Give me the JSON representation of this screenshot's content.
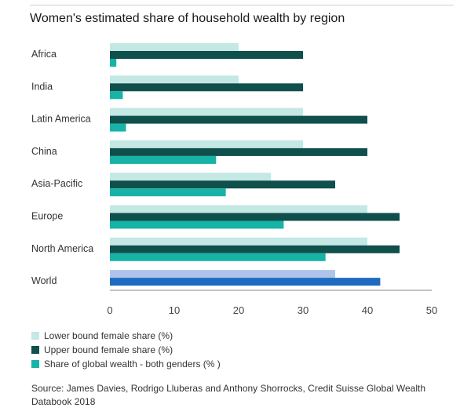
{
  "title": "Women's estimated share of household wealth by region",
  "colors": {
    "lower": "#c4e8e4",
    "upper": "#0f4f4c",
    "global": "#17b3a6",
    "world_lower": "#aec4ea",
    "world_upper": "#1f6bc2"
  },
  "chart_data": {
    "type": "bar",
    "orientation": "horizontal",
    "categories": [
      "Africa",
      "India",
      "Latin America",
      "China",
      "Asia-Pacific",
      "Europe",
      "North America",
      "World"
    ],
    "series": [
      {
        "name": "Lower bound female share (%)",
        "values": [
          20,
          20,
          30,
          30,
          25,
          40,
          40,
          35
        ]
      },
      {
        "name": "Upper bound female share (%)",
        "values": [
          30,
          30,
          40,
          40,
          35,
          45,
          45,
          42
        ]
      },
      {
        "name": "Share of global wealth - both genders (% )",
        "values": [
          1,
          2,
          2.5,
          16.5,
          18,
          27,
          33.5,
          null
        ]
      }
    ],
    "xticks": [
      "0",
      "10",
      "20",
      "30",
      "40",
      "50"
    ],
    "xlim": [
      0,
      50
    ],
    "grid": false,
    "legend_position": "bottom-left"
  },
  "legend": [
    {
      "label": "Lower bound female share (%)",
      "color": "#c4e8e4"
    },
    {
      "label": "Upper bound female share (%)",
      "color": "#0f4f4c"
    },
    {
      "label": "Share of global wealth - both genders (% )",
      "color": "#17b3a6"
    }
  ],
  "source": "Source: James Davies, Rodrigo Lluberas and Anthony Shorrocks, Credit Suisse Global Wealth Databook 2018"
}
